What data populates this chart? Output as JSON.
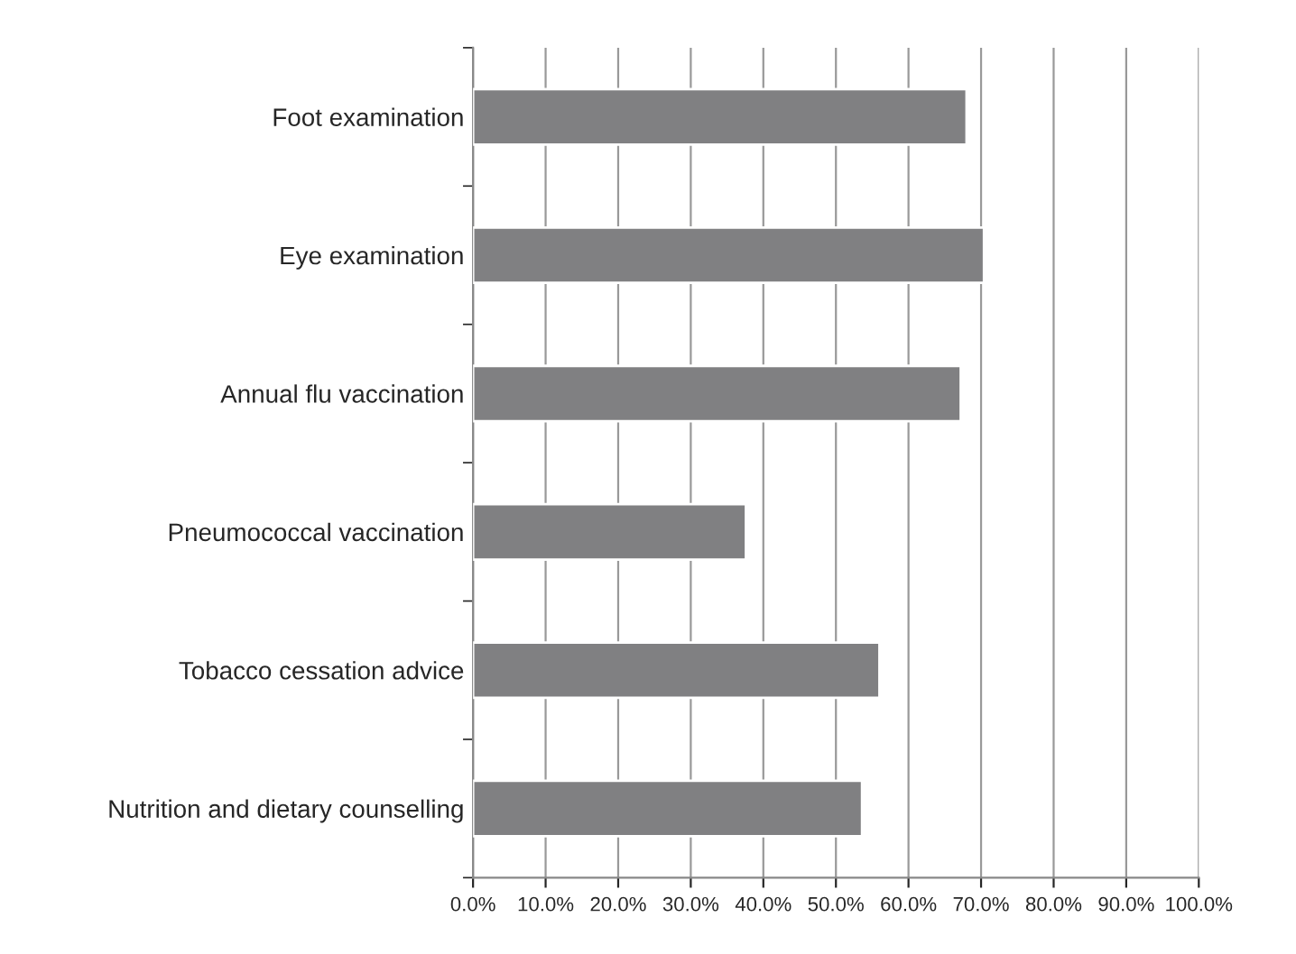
{
  "chart_data": {
    "type": "bar",
    "orientation": "horizontal",
    "categories": [
      "Foot examination",
      "Eye examination",
      "Annual flu vaccination",
      "Pneumococcal vaccination",
      "Tobacco cessation advice",
      "Nutrition and dietary counselling"
    ],
    "values": [
      68.0,
      70.4,
      67.2,
      37.6,
      56.0,
      53.6
    ],
    "color": "#808082",
    "xlim": [
      0,
      100
    ],
    "xticks": [
      {
        "value": 0,
        "label": "0.0%"
      },
      {
        "value": 10,
        "label": "10.0%"
      },
      {
        "value": 20,
        "label": "20.0%"
      },
      {
        "value": 30,
        "label": "30.0%"
      },
      {
        "value": 40,
        "label": "40.0%"
      },
      {
        "value": 50,
        "label": "50.0%"
      },
      {
        "value": 60,
        "label": "60.0%"
      },
      {
        "value": 70,
        "label": "70.0%"
      },
      {
        "value": 80,
        "label": "80.0%"
      },
      {
        "value": 90,
        "label": "90.0%"
      },
      {
        "value": 100,
        "label": "100.0%"
      }
    ],
    "grid": "x",
    "legend": false
  }
}
